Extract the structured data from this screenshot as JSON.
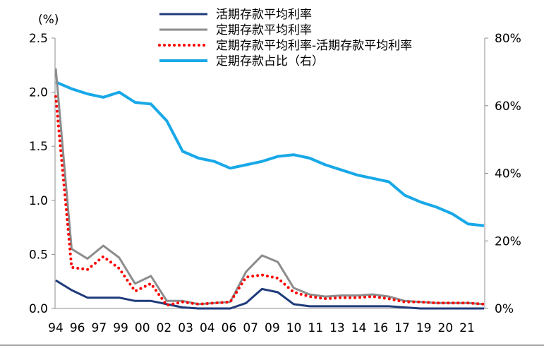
{
  "chart_data": {
    "type": "line",
    "y_left_unit": "(%)",
    "y_left_lim": [
      0,
      2.5
    ],
    "y_left_ticks": [
      "0.0",
      "0.5",
      "1.0",
      "1.5",
      "2.0",
      "2.5"
    ],
    "y_right_lim": [
      0,
      80
    ],
    "y_right_ticks": [
      "0%",
      "20%",
      "40%",
      "60%",
      "80%"
    ],
    "x_tick_labels": [
      "94",
      "96",
      "97",
      "99",
      "00",
      "02",
      "03",
      "04",
      "06",
      "07",
      "09",
      "10",
      "11",
      "13",
      "14",
      "16",
      "17",
      "19",
      "20",
      "21"
    ],
    "x_index_range": [
      0,
      27
    ],
    "legend_position": "top-center",
    "grid": false,
    "series": [
      {
        "name": "活期存款平均利率",
        "axis": "left",
        "color": "#1f3b7a",
        "style": "solid",
        "values": [
          0.26,
          0.17,
          0.1,
          0.1,
          0.1,
          0.07,
          0.07,
          0.04,
          0.01,
          0.0,
          0.0,
          0.0,
          0.05,
          0.18,
          0.15,
          0.04,
          0.02,
          0.02,
          0.02,
          0.02,
          0.02,
          0.02,
          0.01,
          0.0,
          0.0,
          0.0,
          0.0,
          0.0
        ]
      },
      {
        "name": "定期存款平均利率",
        "axis": "left",
        "color": "#8c8c8c",
        "style": "solid",
        "values": [
          2.22,
          0.55,
          0.46,
          0.58,
          0.47,
          0.23,
          0.3,
          0.07,
          0.07,
          0.04,
          0.05,
          0.06,
          0.34,
          0.49,
          0.43,
          0.19,
          0.13,
          0.11,
          0.12,
          0.12,
          0.13,
          0.11,
          0.07,
          0.06,
          0.05,
          0.05,
          0.05,
          0.04
        ]
      },
      {
        "name": "定期存款平均利率-活期存款平均利率",
        "axis": "left",
        "color": "#ff0000",
        "style": "dotted",
        "values": [
          1.96,
          0.38,
          0.36,
          0.48,
          0.37,
          0.16,
          0.23,
          0.03,
          0.06,
          0.04,
          0.05,
          0.06,
          0.29,
          0.31,
          0.28,
          0.15,
          0.11,
          0.09,
          0.1,
          0.1,
          0.11,
          0.09,
          0.06,
          0.06,
          0.05,
          0.05,
          0.05,
          0.04
        ]
      },
      {
        "name": "定期存款占比（右）",
        "axis": "right",
        "color": "#18a8e8",
        "style": "solid",
        "values": [
          67.0,
          65.0,
          63.5,
          62.5,
          64.0,
          61.0,
          60.5,
          55.5,
          46.5,
          44.5,
          43.5,
          41.5,
          42.5,
          43.5,
          45.0,
          45.5,
          44.5,
          42.5,
          41.0,
          39.5,
          38.5,
          37.5,
          33.5,
          31.5,
          30.0,
          28.0,
          25.0,
          24.5
        ]
      }
    ]
  }
}
